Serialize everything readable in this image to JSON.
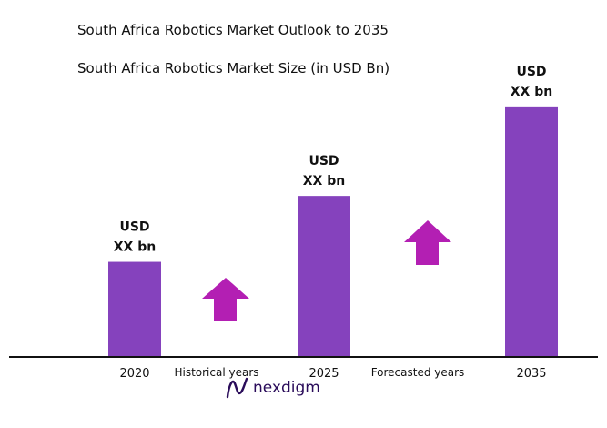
{
  "header": {
    "title": "South Africa Robotics Market Outlook to 2035",
    "subtitle": "South Africa Robotics Market Size (in USD Bn)"
  },
  "chart_data": {
    "type": "bar",
    "categories": [
      "2020",
      "2025",
      "2035"
    ],
    "values": [
      1.0,
      1.7,
      2.65
    ],
    "data_labels": [
      [
        "USD",
        "XX bn"
      ],
      [
        "USD",
        "XX bn"
      ],
      [
        "USD",
        "XX bn"
      ]
    ],
    "period_labels": [
      "Historical years",
      "Forecasted years"
    ],
    "ylim": [
      0,
      2.9
    ],
    "grid": false,
    "bar_color": "#8542bd",
    "arrow_color": "#b31fb3"
  },
  "footer": {
    "logo_text": "nexdigm",
    "logo_icon": "nexdigm-wave-logo"
  }
}
